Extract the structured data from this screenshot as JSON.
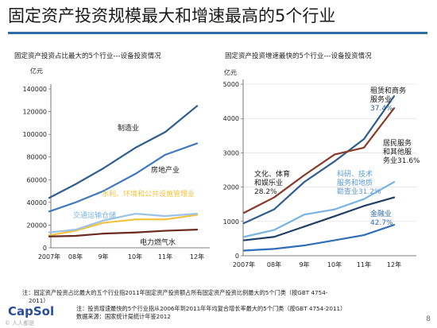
{
  "slide": {
    "title": "固定资产投资规模最大和增速最高的5个行业",
    "page_number": "8",
    "notes": [
      "注：固定资产投资占比最大的五个行业指2011年固定资产投资额占所有固定资产投资比例最大的5个门类（按GBT 4754-",
      "2011）",
      "注：投资增速最快的5个行业指从2006年到2011年年均复合增长率最大的5个门类（按GBT 4754-2011）",
      "数据来源：国家统计局统计年鉴2012"
    ],
    "logo": "CapSol",
    "watermark": "© 人人都是"
  },
  "chart_data": [
    {
      "type": "line",
      "title": "固定资产投资占比最大的5个行业---设备投资情况",
      "unit_label": "亿元",
      "categories": [
        "2007年",
        "08年",
        "9年",
        "10年",
        "11年",
        "12年"
      ],
      "ylim": [
        0,
        140000
      ],
      "yticks": [
        0,
        20000,
        40000,
        60000,
        80000,
        100000,
        120000,
        140000
      ],
      "grid": false,
      "series": [
        {
          "name": "制造业",
          "color": "#2e5d8e",
          "values": [
            44000,
            56000,
            70000,
            88000,
            102000,
            125000
          ]
        },
        {
          "name": "房地产业",
          "color": "#3f79be",
          "values": [
            32000,
            40000,
            50000,
            65000,
            82000,
            92000
          ]
        },
        {
          "name": "水利、环境和公共设施管理业",
          "color": "#f2c33f",
          "values": [
            11000,
            15000,
            22000,
            25000,
            25000,
            29000
          ]
        },
        {
          "name": "交通运输仓储",
          "color": "#9cc3e4",
          "values": [
            13500,
            16000,
            24000,
            30000,
            28000,
            30000
          ]
        },
        {
          "name": "电力燃气水",
          "color": "#6b2a20",
          "values": [
            10000,
            10500,
            12500,
            13500,
            15000,
            16000
          ]
        }
      ]
    },
    {
      "type": "line",
      "title": "固定资产投资增速最快的5个行业---设备投资情况",
      "unit_label": "亿元",
      "categories": [
        "2007年",
        "08年",
        "9年",
        "10年",
        "11年",
        "12年"
      ],
      "ylim": [
        0,
        5000
      ],
      "yticks": [
        0,
        1000,
        2000,
        3000,
        4000,
        5000
      ],
      "grid": true,
      "series": [
        {
          "name": "租赁和商务服务",
          "growth": "37.4%",
          "color": "#2e5d8e",
          "values": [
            950,
            1350,
            2150,
            2750,
            3400,
            4650
          ]
        },
        {
          "name": "文化、体育和娱乐业",
          "growth": "28.2%",
          "color": "#8b3a2a",
          "values": [
            1250,
            1700,
            2350,
            2950,
            3150,
            4300
          ]
        },
        {
          "name": "居民服务和其他服务业",
          "growth": "31.6%",
          "color": "#1f3f66",
          "values": [
            450,
            550,
            850,
            1150,
            1450,
            1700
          ]
        },
        {
          "name": "科研、技术服务和地质勘查业",
          "growth": "31.2%",
          "color": "#7ab4e0",
          "values": [
            550,
            750,
            1200,
            1350,
            1650,
            2150
          ]
        },
        {
          "name": "金融业",
          "growth": "42.7%",
          "color": "#2f6db5",
          "values": [
            150,
            200,
            300,
            450,
            600,
            900
          ]
        }
      ]
    }
  ]
}
